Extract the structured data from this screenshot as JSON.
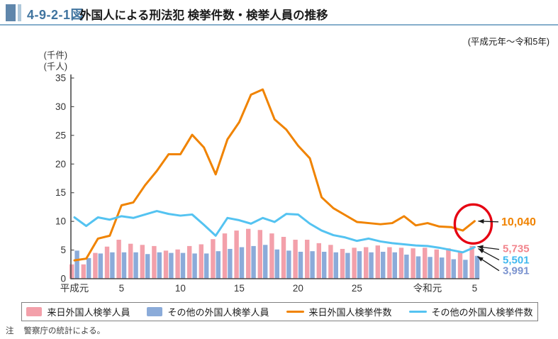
{
  "header": {
    "figure_no": "4-9-2-1図",
    "title": "外国人による刑法犯 検挙件数・検挙人員の推移",
    "period": "(平成元年～令和5年)"
  },
  "chart_data": {
    "type": "bar+line",
    "unit_labels": [
      "(千件)",
      "(千人)"
    ],
    "y_axis": {
      "min": 0,
      "max": 35,
      "tick_step": 5
    },
    "x_tick_positions": [
      0,
      4,
      9,
      14,
      19,
      24,
      30,
      34
    ],
    "x_tick_labels": [
      "平成元",
      "5",
      "10",
      "15",
      "20",
      "25",
      "令和元",
      "5"
    ],
    "categories": [
      "平成元",
      "平成2",
      "平成3",
      "平成4",
      "平成5",
      "平成6",
      "平成7",
      "平成8",
      "平成9",
      "平成10",
      "平成11",
      "平成12",
      "平成13",
      "平成14",
      "平成15",
      "平成16",
      "平成17",
      "平成18",
      "平成19",
      "平成20",
      "平成21",
      "平成22",
      "平成23",
      "平成24",
      "平成25",
      "平成26",
      "平成27",
      "平成28",
      "平成29",
      "平成30",
      "令和元",
      "令和2",
      "令和3",
      "令和4",
      "令和5"
    ],
    "series": [
      {
        "name": "来日外国人検挙人員",
        "type": "bar",
        "color": "#f3a0aa",
        "values": [
          2.5,
          2.5,
          4.5,
          5.6,
          6.8,
          6.1,
          5.9,
          5.7,
          4.9,
          5.1,
          5.7,
          6.0,
          6.9,
          7.9,
          8.4,
          8.7,
          8.5,
          7.9,
          7.3,
          6.8,
          6.8,
          6.2,
          5.9,
          5.2,
          5.4,
          5.5,
          5.8,
          5.5,
          5.4,
          5.3,
          5.4,
          5.1,
          5.3,
          4.6,
          5.735
        ]
      },
      {
        "name": "その他の外国人検挙人員",
        "type": "bar",
        "color": "#8babd9",
        "values": [
          4.9,
          3.6,
          4.4,
          4.6,
          4.6,
          4.6,
          4.3,
          4.6,
          4.5,
          4.5,
          4.4,
          4.4,
          4.8,
          5.2,
          5.5,
          5.7,
          5.9,
          5.1,
          4.9,
          4.7,
          4.8,
          4.7,
          4.6,
          4.5,
          4.8,
          4.6,
          4.7,
          4.6,
          4.2,
          3.9,
          3.8,
          3.7,
          3.4,
          3.3,
          3.991
        ]
      },
      {
        "name": "来日外国人検挙件数",
        "type": "line",
        "color": "#f08300",
        "values": [
          3.2,
          3.5,
          7.0,
          7.5,
          12.8,
          13.3,
          16.3,
          18.8,
          21.7,
          21.7,
          25.1,
          22.9,
          18.2,
          24.3,
          27.3,
          32.1,
          33.0,
          27.8,
          26.0,
          23.2,
          21.0,
          14.2,
          12.3,
          11.1,
          9.9,
          9.7,
          9.5,
          9.7,
          10.9,
          9.3,
          9.7,
          9.1,
          9.0,
          8.4,
          10.04
        ]
      },
      {
        "name": "その他の外国人検挙件数",
        "type": "line",
        "color": "#54c3f1",
        "values": [
          10.7,
          9.2,
          10.7,
          10.3,
          10.9,
          10.6,
          11.2,
          11.8,
          11.3,
          11.0,
          11.2,
          9.4,
          7.5,
          10.6,
          10.2,
          9.6,
          10.6,
          9.9,
          11.3,
          11.2,
          9.6,
          8.4,
          7.6,
          7.2,
          6.6,
          7.0,
          6.5,
          6.2,
          6.0,
          5.8,
          5.7,
          5.4,
          5.0,
          4.6,
          5.501
        ]
      }
    ],
    "annotations": [
      {
        "label": "10,040",
        "series": "来日外国人検挙件数",
        "color": "#f08300"
      },
      {
        "label": "5,735",
        "series": "来日外国人検挙人員",
        "color": "#f2858d"
      },
      {
        "label": "5,501",
        "series": "その他の外国人検挙件数",
        "color": "#3fb8ef"
      },
      {
        "label": "3,991",
        "series": "その他の外国人検挙人員",
        "color": "#7b93cf"
      }
    ],
    "highlight_circle_color": "#e60012"
  },
  "legend": {
    "items": [
      {
        "label": "来日外国人検挙人員",
        "type": "bar",
        "color": "#f3a0aa"
      },
      {
        "label": "その他の外国人検挙人員",
        "type": "bar",
        "color": "#8babd9"
      },
      {
        "label": "来日外国人検挙件数",
        "type": "line",
        "color": "#f08300"
      },
      {
        "label": "その他の外国人検挙件数",
        "type": "line",
        "color": "#54c3f1"
      }
    ]
  },
  "note": {
    "prefix": "注",
    "text": "警察庁の統計による。"
  }
}
